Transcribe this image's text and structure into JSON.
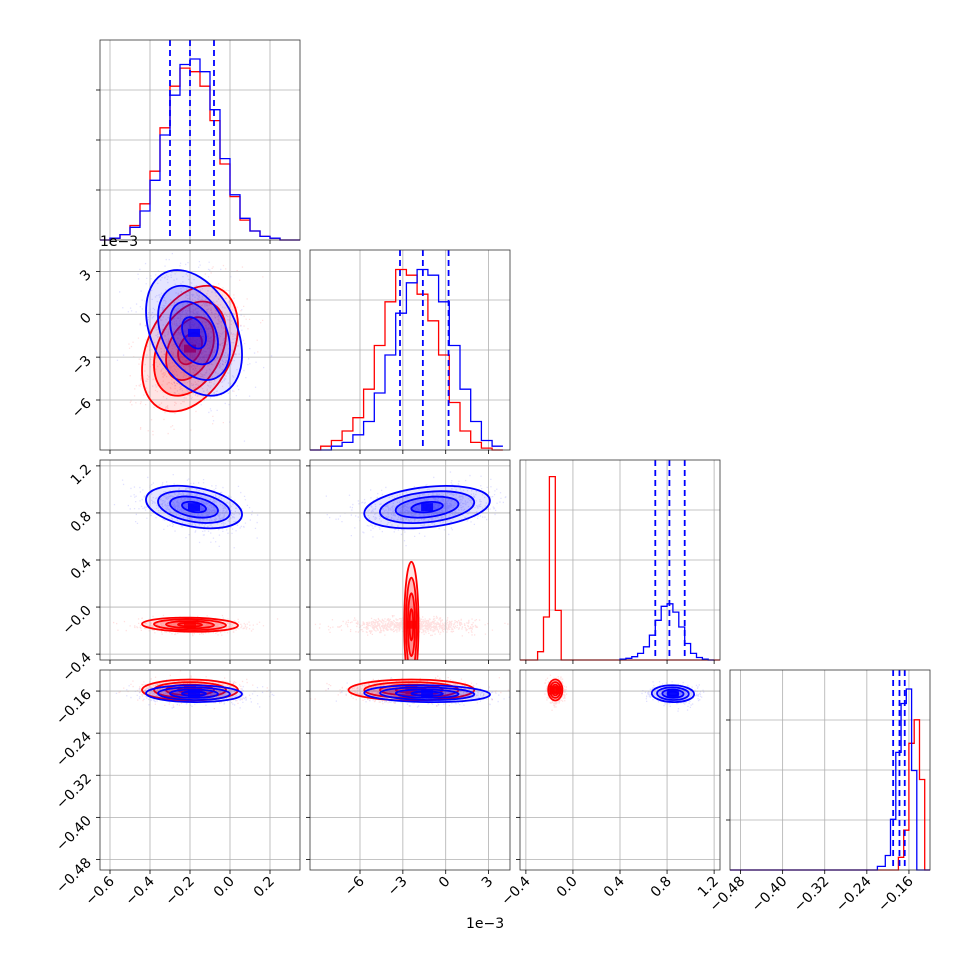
{
  "chart_data": {
    "type": "corner",
    "colors": {
      "model_a": "#0000ff",
      "model_b": "#ff0000"
    },
    "grid": true,
    "params": [
      {
        "id": "p1",
        "range": [
          -0.65,
          0.35
        ],
        "ticks": [
          -0.6,
          -0.4,
          -0.2,
          0.0,
          0.2
        ],
        "tick_labels": [
          "−0.6",
          "−0.4",
          "−0.2",
          "0.0",
          "0.2"
        ]
      },
      {
        "id": "p2",
        "range": [
          -0.0095,
          0.0045
        ],
        "ticks": [
          -0.006,
          -0.003,
          0.0,
          0.003
        ],
        "tick_labels": [
          "−6",
          "−3",
          "0",
          "3"
        ],
        "offset": "1e−3"
      },
      {
        "id": "p3",
        "range": [
          -0.45,
          1.25
        ],
        "ticks": [
          -0.4,
          0.0,
          0.4,
          0.8,
          1.2
        ],
        "tick_labels": [
          "−0.4",
          "0.0",
          "0.4",
          "0.8",
          "1.2"
        ],
        "y_ticks": [
          -0.4,
          -0.0,
          0.4,
          0.8,
          1.2
        ],
        "y_tick_labels": [
          "−0.4",
          "−0.0",
          "0.4",
          "0.8",
          "1.2"
        ]
      },
      {
        "id": "p4",
        "range": [
          -0.5,
          -0.12
        ],
        "ticks": [
          -0.48,
          -0.4,
          -0.32,
          -0.24,
          -0.16
        ],
        "tick_labels": [
          "−0.48",
          "−0.40",
          "−0.32",
          "−0.24",
          "−0.16"
        ]
      }
    ],
    "series": [
      {
        "name": "",
        "color": "#0000ff",
        "mean": [
          -0.18,
          -0.0013,
          0.85,
          -0.165
        ],
        "sd": [
          0.12,
          0.0022,
          0.09,
          0.008
        ],
        "corr": {
          "p1_p2": -0.35,
          "p1_p3": -0.35,
          "p1_p4": -0.05,
          "p2_p3": 0.3,
          "p2_p4": -0.1,
          "p3_p4": -0.05
        },
        "quantiles": [
          [
            -0.3,
            -0.2,
            -0.08
          ],
          [
            -0.0032,
            -0.0016,
            0.0002
          ],
          [
            0.7,
            0.82,
            0.95
          ],
          [
            -0.19,
            -0.178,
            -0.168
          ]
        ]
      },
      {
        "name": "",
        "color": "#ff0000",
        "mean": [
          -0.2,
          -0.0024,
          -0.15,
          -0.158
        ],
        "sd": [
          0.12,
          0.0022,
          0.03,
          0.01
        ],
        "corr": {
          "p1_p2": 0.35,
          "p1_p3": -0.1,
          "p1_p4": 0.0,
          "p2_p3": 0.0,
          "p2_p4": 0.0,
          "p3_p4": 0.0
        },
        "quantiles": []
      }
    ],
    "hist_blue": {
      "p1": {
        "edges": [
          -0.65,
          -0.6,
          -0.55,
          -0.5,
          -0.45,
          -0.4,
          -0.35,
          -0.3,
          -0.25,
          -0.2,
          -0.15,
          -0.1,
          -0.05,
          0.0,
          0.05,
          0.1,
          0.15,
          0.2,
          0.25,
          0.3,
          0.35
        ],
        "counts": [
          0.0,
          0.01,
          0.03,
          0.07,
          0.16,
          0.33,
          0.58,
          0.8,
          0.97,
          1.0,
          0.93,
          0.72,
          0.45,
          0.25,
          0.12,
          0.05,
          0.02,
          0.01,
          0.0,
          0.0
        ]
      },
      "p2": {
        "edges": [
          -0.0095,
          -0.00875,
          -0.008,
          -0.00725,
          -0.0065,
          -0.00575,
          -0.005,
          -0.00425,
          -0.0035,
          -0.00275,
          -0.002,
          -0.00125,
          -0.0005,
          0.00025,
          0.001,
          0.00175,
          0.0025,
          0.00325,
          0.004
        ],
        "counts": [
          0.0,
          0.0,
          0.02,
          0.04,
          0.08,
          0.15,
          0.3,
          0.5,
          0.72,
          0.88,
          0.95,
          0.92,
          0.78,
          0.55,
          0.32,
          0.15,
          0.05,
          0.02
        ]
      },
      "p3": {
        "edges": [
          0.4,
          0.45,
          0.5,
          0.55,
          0.6,
          0.65,
          0.7,
          0.75,
          0.8,
          0.85,
          0.9,
          0.95,
          1.0,
          1.05,
          1.1,
          1.15,
          1.2
        ],
        "counts": [
          0.01,
          0.02,
          0.04,
          0.08,
          0.16,
          0.3,
          0.48,
          0.65,
          0.68,
          0.58,
          0.4,
          0.2,
          0.08,
          0.03,
          0.01,
          0.0
        ]
      },
      "p4": {
        "edges": [
          -0.5,
          -0.22,
          -0.205,
          -0.195,
          -0.185,
          -0.175,
          -0.165,
          -0.155,
          -0.145,
          -0.12
        ],
        "counts": [
          0.0,
          0.02,
          0.08,
          0.28,
          0.65,
          0.92,
          1.0,
          0.55,
          0.0
        ]
      }
    },
    "hist_red": {
      "p1": {
        "edges": [
          -0.65,
          -0.6,
          -0.55,
          -0.5,
          -0.45,
          -0.4,
          -0.35,
          -0.3,
          -0.25,
          -0.2,
          -0.15,
          -0.1,
          -0.05,
          0.0,
          0.05,
          0.1,
          0.15,
          0.2,
          0.25,
          0.3,
          0.35
        ],
        "counts": [
          0.0,
          0.01,
          0.03,
          0.08,
          0.2,
          0.38,
          0.62,
          0.85,
          0.95,
          0.93,
          0.85,
          0.66,
          0.42,
          0.24,
          0.11,
          0.05,
          0.02,
          0.01,
          0.0,
          0.0
        ]
      },
      "p2": {
        "edges": [
          -0.0095,
          -0.00875,
          -0.008,
          -0.00725,
          -0.0065,
          -0.00575,
          -0.005,
          -0.00425,
          -0.0035,
          -0.00275,
          -0.002,
          -0.00125,
          -0.0005,
          0.00025,
          0.001,
          0.00175,
          0.0025,
          0.00325,
          0.004
        ],
        "counts": [
          0.0,
          0.02,
          0.05,
          0.1,
          0.17,
          0.32,
          0.55,
          0.78,
          0.95,
          0.92,
          0.82,
          0.68,
          0.5,
          0.25,
          0.1,
          0.04,
          0.01,
          0.0
        ]
      },
      "p3": {
        "edges": [
          -0.45,
          -0.4,
          -0.3,
          -0.25,
          -0.2,
          -0.15,
          -0.1,
          -0.05,
          0.0,
          1.25
        ],
        "counts": [
          0.0,
          0.0,
          0.1,
          0.52,
          2.22,
          0.6,
          0.0,
          0.0,
          0.0
        ]
      },
      "p4": {
        "edges": [
          -0.5,
          -0.18,
          -0.17,
          -0.16,
          -0.15,
          -0.14,
          -0.13,
          -0.12
        ],
        "counts": [
          0.0,
          0.07,
          0.22,
          0.7,
          0.83,
          0.5,
          0.0
        ]
      }
    },
    "offsets": {
      "p2_y": "1e−3",
      "p2_x": "1e−3"
    }
  }
}
